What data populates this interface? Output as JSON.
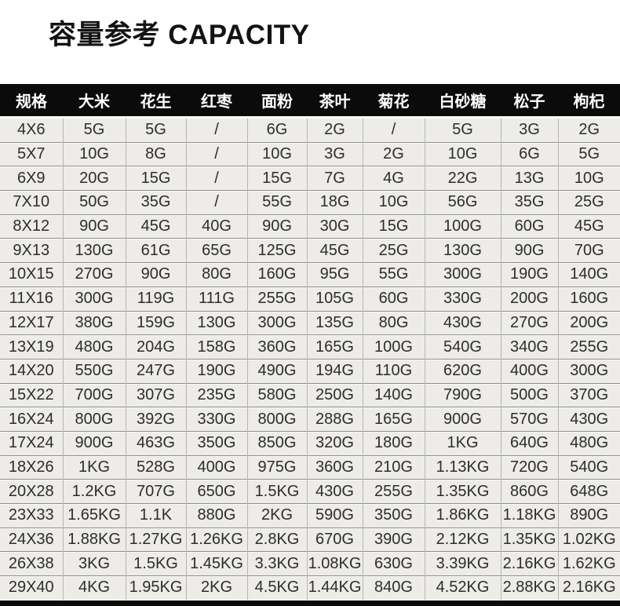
{
  "title": "容量参考 CAPACITY",
  "colors": {
    "header_bg": "#0b0b0b",
    "header_text": "#ffffff",
    "cell_bg": "#edece9",
    "cell_text": "#2d2d2b",
    "row_rule": "#90908a",
    "column_rule": "#b6b6b1",
    "bottom_bar": "#0b0b0b",
    "page_bg": "#ffffff"
  },
  "table": {
    "columns": [
      "规格",
      "大米",
      "花生",
      "红枣",
      "面粉",
      "茶叶",
      "菊花",
      "白砂糖",
      "松子",
      "枸杞"
    ],
    "rows": [
      [
        "4X6",
        "5G",
        "5G",
        "/",
        "6G",
        "2G",
        "/",
        "5G",
        "3G",
        "2G"
      ],
      [
        "5X7",
        "10G",
        "8G",
        "/",
        "10G",
        "3G",
        "2G",
        "10G",
        "6G",
        "5G"
      ],
      [
        "6X9",
        "20G",
        "15G",
        "/",
        "15G",
        "7G",
        "4G",
        "22G",
        "13G",
        "10G"
      ],
      [
        "7X10",
        "50G",
        "35G",
        "/",
        "55G",
        "18G",
        "10G",
        "56G",
        "35G",
        "25G"
      ],
      [
        "8X12",
        "90G",
        "45G",
        "40G",
        "90G",
        "30G",
        "15G",
        "100G",
        "60G",
        "45G"
      ],
      [
        "9X13",
        "130G",
        "61G",
        "65G",
        "125G",
        "45G",
        "25G",
        "130G",
        "90G",
        "70G"
      ],
      [
        "10X15",
        "270G",
        "90G",
        "80G",
        "160G",
        "95G",
        "55G",
        "300G",
        "190G",
        "140G"
      ],
      [
        "11X16",
        "300G",
        "119G",
        "111G",
        "255G",
        "105G",
        "60G",
        "330G",
        "200G",
        "160G"
      ],
      [
        "12X17",
        "380G",
        "159G",
        "130G",
        "300G",
        "135G",
        "80G",
        "430G",
        "270G",
        "200G"
      ],
      [
        "13X19",
        "480G",
        "204G",
        "158G",
        "360G",
        "165G",
        "100G",
        "540G",
        "340G",
        "255G"
      ],
      [
        "14X20",
        "550G",
        "247G",
        "190G",
        "490G",
        "194G",
        "110G",
        "620G",
        "400G",
        "300G"
      ],
      [
        "15X22",
        "700G",
        "307G",
        "235G",
        "580G",
        "250G",
        "140G",
        "790G",
        "500G",
        "370G"
      ],
      [
        "16X24",
        "800G",
        "392G",
        "330G",
        "800G",
        "288G",
        "165G",
        "900G",
        "570G",
        "430G"
      ],
      [
        "17X24",
        "900G",
        "463G",
        "350G",
        "850G",
        "320G",
        "180G",
        "1KG",
        "640G",
        "480G"
      ],
      [
        "18X26",
        "1KG",
        "528G",
        "400G",
        "975G",
        "360G",
        "210G",
        "1.13KG",
        "720G",
        "540G"
      ],
      [
        "20X28",
        "1.2KG",
        "707G",
        "650G",
        "1.5KG",
        "430G",
        "255G",
        "1.35KG",
        "860G",
        "648G"
      ],
      [
        "23X33",
        "1.65KG",
        "1.1K",
        "880G",
        "2KG",
        "590G",
        "350G",
        "1.86KG",
        "1.18KG",
        "890G"
      ],
      [
        "24X36",
        "1.88KG",
        "1.27KG",
        "1.26KG",
        "2.8KG",
        "670G",
        "390G",
        "2.12KG",
        "1.35KG",
        "1.02KG"
      ],
      [
        "26X38",
        "3KG",
        "1.5KG",
        "1.45KG",
        "3.3KG",
        "1.08KG",
        "630G",
        "3.39KG",
        "2.16KG",
        "1.62KG"
      ],
      [
        "29X40",
        "4KG",
        "1.95KG",
        "2KG",
        "4.5KG",
        "1.44KG",
        "840G",
        "4.52KG",
        "2.88KG",
        "2.16KG"
      ]
    ]
  }
}
